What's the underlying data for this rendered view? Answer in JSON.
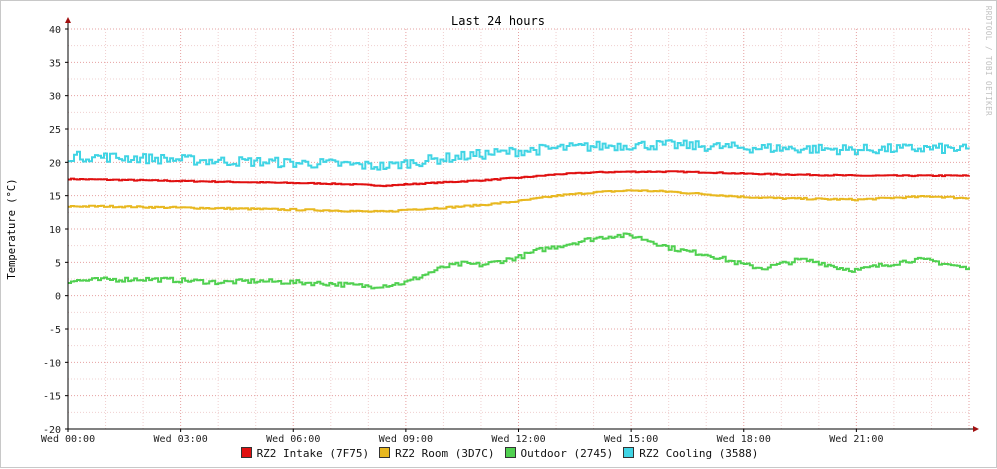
{
  "chart_data": {
    "type": "line",
    "title": "Last 24 hours",
    "ylabel": "Temperature (°C)",
    "watermark": "RRDTOOL / TOBI OETIKER",
    "ylim": [
      -20,
      40
    ],
    "y_ticks": [
      40,
      35,
      30,
      25,
      20,
      15,
      10,
      5,
      0,
      -5,
      -10,
      -15,
      -20
    ],
    "xlim": [
      0,
      24
    ],
    "x_ticks": [
      {
        "hour": 0,
        "label": "Wed 00:00"
      },
      {
        "hour": 3,
        "label": "Wed 03:00"
      },
      {
        "hour": 6,
        "label": "Wed 06:00"
      },
      {
        "hour": 9,
        "label": "Wed 09:00"
      },
      {
        "hour": 12,
        "label": "Wed 12:00"
      },
      {
        "hour": 15,
        "label": "Wed 15:00"
      },
      {
        "hour": 18,
        "label": "Wed 18:00"
      },
      {
        "hour": 21,
        "label": "Wed 21:00"
      }
    ],
    "grid": true,
    "legend_position": "bottom",
    "series": [
      {
        "name": "RZ2 Intake (7F75)",
        "color": "#e01010",
        "noise": 0.08,
        "x": [
          0,
          1,
          2,
          3,
          4,
          5,
          6,
          7,
          8,
          8.5,
          9,
          10,
          11,
          12,
          13,
          14,
          15,
          16,
          17,
          18,
          19,
          20,
          21,
          22,
          23,
          24
        ],
        "y": [
          17.5,
          17.4,
          17.3,
          17.2,
          17.1,
          17.0,
          16.9,
          16.8,
          16.6,
          16.5,
          16.7,
          17.0,
          17.3,
          17.7,
          18.2,
          18.5,
          18.6,
          18.6,
          18.5,
          18.3,
          18.2,
          18.1,
          18.0,
          18.0,
          18.0,
          18.0
        ]
      },
      {
        "name": "RZ2 Room (3D7C)",
        "color": "#e8b820",
        "noise": 0.12,
        "x": [
          0,
          1,
          2,
          3,
          4,
          5,
          6,
          7,
          8,
          8.5,
          9,
          10,
          11,
          12,
          13,
          14,
          15,
          16,
          17,
          18,
          19,
          20,
          21,
          22,
          23,
          24
        ],
        "y": [
          13.4,
          13.4,
          13.3,
          13.2,
          13.1,
          13.0,
          12.9,
          12.8,
          12.6,
          12.6,
          12.9,
          13.2,
          13.6,
          14.2,
          15.0,
          15.5,
          15.8,
          15.6,
          15.2,
          14.8,
          14.6,
          14.5,
          14.4,
          14.7,
          14.9,
          14.6
        ]
      },
      {
        "name": "Outdoor (2745)",
        "color": "#50d050",
        "noise": 0.35,
        "x": [
          0,
          1,
          2,
          3,
          4,
          5,
          6,
          7,
          8,
          8.5,
          9,
          9.5,
          10,
          10.5,
          11,
          11.5,
          12,
          12.5,
          13,
          13.5,
          14,
          14.5,
          15,
          15.5,
          16,
          16.5,
          17,
          17.5,
          18,
          18.5,
          19,
          19.5,
          20,
          20.5,
          21,
          21.5,
          22,
          22.5,
          23,
          23.5,
          24
        ],
        "y": [
          2.2,
          2.4,
          2.5,
          2.3,
          2.0,
          2.2,
          2.0,
          1.8,
          1.4,
          1.6,
          2.0,
          3.2,
          4.3,
          4.8,
          4.6,
          5.2,
          5.8,
          6.8,
          7.4,
          8.0,
          8.6,
          9.0,
          9.0,
          8.2,
          7.2,
          6.6,
          6.2,
          5.4,
          4.6,
          4.1,
          4.8,
          5.4,
          5.0,
          4.2,
          3.8,
          4.4,
          4.9,
          5.4,
          5.2,
          4.6,
          4.0
        ]
      },
      {
        "name": "RZ2 Cooling (3588)",
        "color": "#40d4e4",
        "noise": 0.75,
        "x": [
          0,
          1,
          2,
          3,
          4,
          5,
          6,
          7,
          8,
          8.5,
          9,
          10,
          11,
          12,
          13,
          14,
          15,
          16,
          17,
          18,
          19,
          20,
          21,
          22,
          23,
          24
        ],
        "y": [
          20.9,
          20.8,
          20.6,
          20.4,
          20.2,
          20.1,
          19.9,
          19.8,
          19.5,
          19.4,
          19.9,
          20.6,
          21.2,
          21.7,
          22.1,
          22.4,
          22.6,
          22.6,
          22.4,
          22.2,
          22.1,
          22.0,
          21.9,
          22.0,
          22.1,
          21.9
        ]
      }
    ]
  }
}
